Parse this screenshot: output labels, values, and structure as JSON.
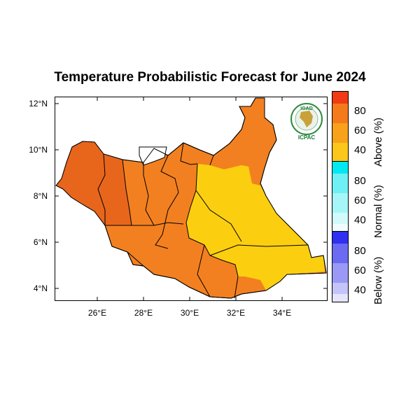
{
  "title": "Temperature Probabilistic Forecast for June 2024",
  "axes": {
    "lat_labels": [
      "12°N",
      "10°N",
      "8°N",
      "6°N",
      "4°N"
    ],
    "lon_labels": [
      "26°E",
      "28°E",
      "30°E",
      "32°E",
      "34°E"
    ]
  },
  "legend": {
    "above": {
      "label": "Above (%)",
      "ticks": [
        "80",
        "60",
        "40"
      ],
      "colors": [
        "#f03b14",
        "#f57a1c",
        "#f8a11a",
        "#fbc71a",
        "#ffef40"
      ]
    },
    "normal": {
      "label": "Normal (%)",
      "ticks": [
        "80",
        "60",
        "40"
      ],
      "colors": [
        "#00e8f0",
        "#6ef0f4",
        "#a6f6f8",
        "#d2fafb",
        "#f0fdfe"
      ]
    },
    "below": {
      "label": "Below (%)",
      "ticks": [
        "80",
        "60",
        "40"
      ],
      "colors": [
        "#3030f0",
        "#6a6af2",
        "#9a9af6",
        "#c4c4fa",
        "#e4e4fc"
      ]
    }
  },
  "logo": {
    "top_text": "IGAD",
    "bottom_text": "ICPAC"
  },
  "colors": {
    "orange_dark": "#e8661c",
    "orange": "#f38020",
    "yellow": "#fbcf10"
  }
}
